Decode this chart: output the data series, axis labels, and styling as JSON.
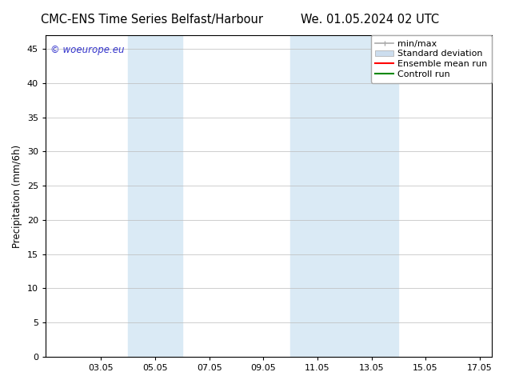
{
  "title_left": "CMC-ENS Time Series Belfast/Harbour",
  "title_right": "We. 01.05.2024 02 UTC",
  "ylabel": "Precipitation (mm/6h)",
  "watermark": "© woeurope.eu",
  "xlim_left": 1.0,
  "xlim_right": 17.5,
  "ylim_bottom": 0,
  "ylim_top": 47,
  "yticks": [
    0,
    5,
    10,
    15,
    20,
    25,
    30,
    35,
    40,
    45
  ],
  "xtick_labels": [
    "03.05",
    "05.05",
    "07.05",
    "09.05",
    "11.05",
    "13.05",
    "15.05",
    "17.05"
  ],
  "xtick_positions": [
    3.05,
    5.05,
    7.05,
    9.05,
    11.05,
    13.05,
    15.05,
    17.05
  ],
  "shaded_bands": [
    {
      "x_start": 4.05,
      "x_end": 6.05,
      "color": "#daeaf5"
    },
    {
      "x_start": 10.05,
      "x_end": 12.05,
      "color": "#daeaf5"
    },
    {
      "x_start": 12.05,
      "x_end": 14.05,
      "color": "#daeaf5"
    }
  ],
  "legend_entries": [
    {
      "label": "min/max",
      "color": "#aaaaaa",
      "lw": 1.2,
      "style": "minmax"
    },
    {
      "label": "Standard deviation",
      "color": "#ccddee",
      "lw": 8,
      "style": "band"
    },
    {
      "label": "Ensemble mean run",
      "color": "#ff0000",
      "lw": 1.5,
      "style": "line"
    },
    {
      "label": "Controll run",
      "color": "#008800",
      "lw": 1.5,
      "style": "line"
    }
  ],
  "bg_color": "#ffffff",
  "plot_bg_color": "#ffffff",
  "grid_color": "#bbbbbb",
  "title_fontsize": 10.5,
  "label_fontsize": 8.5,
  "tick_fontsize": 8,
  "watermark_color": "#3333cc",
  "watermark_fontsize": 8.5
}
